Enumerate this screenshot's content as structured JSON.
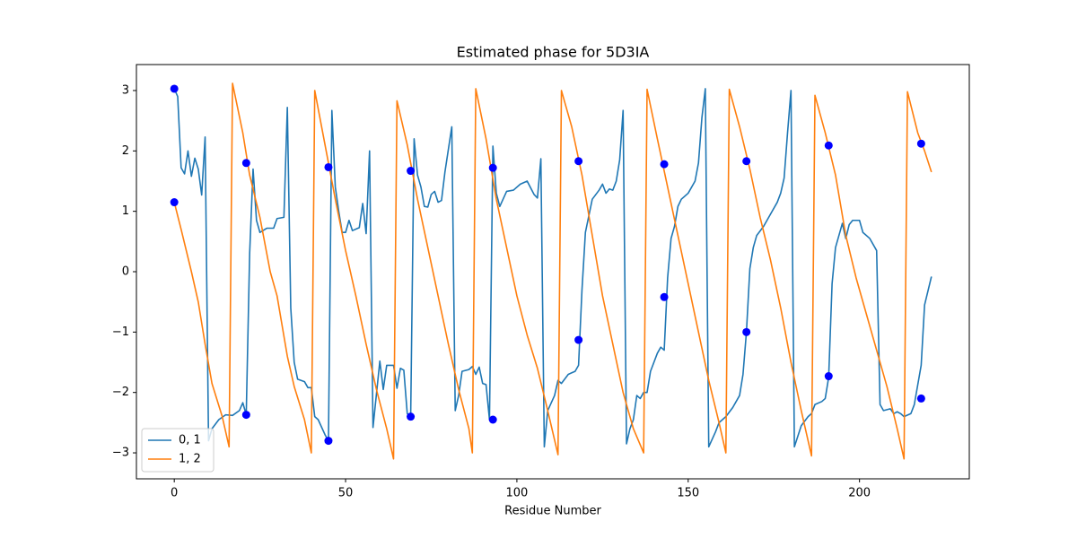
{
  "chart_data": {
    "type": "line",
    "title": "Estimated phase for 5D3IA",
    "x_label": "Residue Number",
    "xlim": [
      -11.05,
      232.05
    ],
    "ylim": [
      -3.43,
      3.43
    ],
    "xticks": [
      0,
      50,
      100,
      150,
      200
    ],
    "yticks": [
      {
        "value": -3,
        "label": "−3"
      },
      {
        "value": -2,
        "label": "−2"
      },
      {
        "value": -1,
        "label": "−1"
      },
      0,
      1,
      2,
      3
    ],
    "legend": "lower left",
    "series": [
      {
        "name": "0, 1",
        "color": "#1f77b4",
        "x": [
          0,
          1,
          2,
          3,
          4,
          5,
          6,
          7,
          8,
          9,
          10,
          11,
          13,
          15,
          17,
          19,
          20,
          21,
          22,
          23,
          24,
          25,
          27,
          29,
          30,
          32,
          33,
          34,
          35,
          36,
          38,
          39,
          40,
          41,
          42,
          44,
          45,
          46,
          47,
          48,
          49,
          50,
          51,
          52,
          54,
          55,
          56,
          57,
          58,
          60,
          61,
          62,
          64,
          65,
          66,
          67,
          68,
          69,
          70,
          71,
          72,
          73,
          74,
          75,
          76,
          77,
          78,
          79,
          81,
          82,
          83,
          84,
          86,
          87,
          88,
          89,
          90,
          91,
          92,
          93,
          94,
          95,
          97,
          99,
          101,
          103,
          105,
          106,
          107,
          108,
          109,
          111,
          112,
          113,
          115,
          117,
          118,
          119,
          120,
          122,
          124,
          125,
          126,
          127,
          128,
          129,
          130,
          131,
          132,
          133,
          134,
          135,
          136,
          137,
          138,
          139,
          141,
          142,
          143,
          144,
          145,
          146,
          147,
          148,
          150,
          152,
          153,
          154,
          155,
          156,
          158,
          159,
          161,
          163,
          165,
          166,
          167,
          168,
          169,
          170,
          172,
          174,
          176,
          177,
          178,
          179,
          180,
          181,
          183,
          185,
          186,
          187,
          189,
          190,
          191,
          192,
          193,
          194,
          195,
          196,
          197,
          198,
          200,
          201,
          203,
          205,
          206,
          207,
          209,
          210,
          211,
          212,
          213,
          215,
          216,
          218,
          219,
          221
        ],
        "values": [
          3.03,
          2.9,
          1.72,
          1.62,
          2.0,
          1.58,
          1.88,
          1.7,
          1.27,
          2.23,
          -2.8,
          -2.6,
          -2.45,
          -2.37,
          -2.38,
          -2.3,
          -2.17,
          -2.37,
          0.3,
          1.7,
          0.85,
          0.65,
          0.72,
          0.72,
          0.88,
          0.9,
          2.72,
          -0.6,
          -1.5,
          -1.78,
          -1.82,
          -1.92,
          -1.92,
          -2.4,
          -2.45,
          -2.7,
          -2.8,
          2.67,
          1.4,
          1.0,
          0.65,
          0.65,
          0.85,
          0.68,
          0.73,
          1.13,
          0.63,
          2.0,
          -2.58,
          -1.48,
          -1.95,
          -1.55,
          -1.55,
          -1.93,
          -1.6,
          -1.63,
          -2.35,
          -2.4,
          2.2,
          1.6,
          1.4,
          1.08,
          1.07,
          1.28,
          1.33,
          1.15,
          1.18,
          1.65,
          2.4,
          -2.3,
          -2.05,
          -1.65,
          -1.62,
          -1.57,
          -1.7,
          -1.58,
          -1.85,
          -1.87,
          -2.45,
          2.08,
          1.3,
          1.08,
          1.33,
          1.35,
          1.45,
          1.5,
          1.28,
          1.22,
          1.87,
          -2.9,
          -2.3,
          -2.05,
          -1.8,
          -1.85,
          -1.7,
          -1.65,
          -1.55,
          -0.3,
          0.65,
          1.2,
          1.35,
          1.45,
          1.3,
          1.37,
          1.35,
          1.5,
          1.85,
          2.67,
          -2.85,
          -2.6,
          -2.45,
          -2.05,
          -2.1,
          -2.0,
          -2.0,
          -1.65,
          -1.35,
          -1.25,
          -1.3,
          -0.1,
          0.55,
          0.75,
          1.08,
          1.2,
          1.3,
          1.5,
          1.8,
          2.55,
          3.03,
          -2.9,
          -2.65,
          -2.5,
          -2.4,
          -2.25,
          -2.05,
          -1.7,
          -1.0,
          0.05,
          0.4,
          0.6,
          0.75,
          0.95,
          1.15,
          1.3,
          1.55,
          2.3,
          3.0,
          -2.9,
          -2.55,
          -2.4,
          -2.35,
          -2.2,
          -2.15,
          -2.1,
          -1.75,
          -0.2,
          0.4,
          0.6,
          0.8,
          0.55,
          0.78,
          0.85,
          0.85,
          0.65,
          0.55,
          0.35,
          -2.2,
          -2.3,
          -2.27,
          -2.35,
          -2.32,
          -2.35,
          -2.4,
          -2.35,
          -2.2,
          -1.55,
          -0.55,
          -0.08
        ]
      },
      {
        "name": "1, 2",
        "color": "#ff7f0e",
        "x": [
          0,
          2,
          5,
          7,
          9,
          11,
          14,
          16,
          17,
          20,
          22,
          25,
          28,
          30,
          33,
          35,
          38,
          40,
          41,
          44,
          47,
          50,
          53,
          56,
          59,
          62,
          64,
          65,
          68,
          71,
          74,
          77,
          80,
          83,
          86,
          87,
          88,
          91,
          94,
          97,
          100,
          103,
          106,
          109,
          112,
          113,
          116,
          119,
          122,
          125,
          128,
          131,
          134,
          137,
          138,
          141,
          144,
          147,
          150,
          153,
          156,
          159,
          161,
          162,
          165,
          168,
          171,
          174,
          177,
          180,
          183,
          186,
          187,
          190,
          193,
          196,
          199,
          202,
          205,
          208,
          211,
          213,
          214,
          217,
          219,
          221
        ],
        "values": [
          1.15,
          0.7,
          0.0,
          -0.5,
          -1.2,
          -1.85,
          -2.4,
          -2.9,
          3.12,
          2.3,
          1.6,
          0.9,
          0.0,
          -0.4,
          -1.4,
          -1.9,
          -2.45,
          -3.0,
          3.0,
          2.1,
          1.2,
          0.35,
          -0.4,
          -1.2,
          -1.95,
          -2.6,
          -3.1,
          2.83,
          2.1,
          1.2,
          0.4,
          -0.4,
          -1.2,
          -1.95,
          -2.6,
          -3.0,
          3.03,
          2.2,
          1.2,
          0.4,
          -0.4,
          -1.05,
          -1.6,
          -2.3,
          -3.03,
          3.0,
          2.4,
          1.6,
          0.6,
          -0.4,
          -1.2,
          -2.0,
          -2.6,
          -3.0,
          3.02,
          2.2,
          1.4,
          0.6,
          -0.2,
          -1.0,
          -1.8,
          -2.5,
          -3.0,
          3.02,
          2.4,
          1.7,
          0.9,
          0.2,
          -0.6,
          -1.5,
          -2.3,
          -3.05,
          2.92,
          2.3,
          1.6,
          0.6,
          -0.1,
          -0.7,
          -1.3,
          -1.9,
          -2.6,
          -3.1,
          2.98,
          2.3,
          2.0,
          1.65
        ]
      }
    ],
    "markers": {
      "color": "#0000ff",
      "x": [
        0,
        0,
        21,
        21,
        45,
        45,
        69,
        69,
        93,
        93,
        118,
        118,
        143,
        143,
        167,
        167,
        191,
        191,
        218,
        218
      ],
      "values": [
        3.03,
        1.15,
        1.8,
        -2.37,
        1.73,
        -2.8,
        1.67,
        -2.4,
        1.72,
        -2.45,
        1.83,
        -1.13,
        1.78,
        -0.42,
        1.83,
        -1.0,
        2.09,
        -1.73,
        2.12,
        -2.1
      ]
    }
  }
}
